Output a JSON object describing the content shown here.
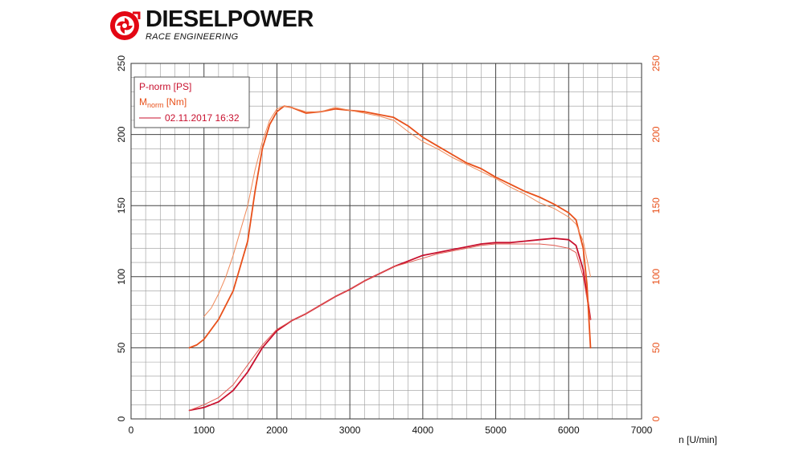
{
  "header": {
    "brand": "DIESELPOWER",
    "tagline": "RACE ENGINEERING",
    "brand_color": "#111111",
    "mark_color": "#e30613"
  },
  "chart_data": {
    "type": "line",
    "xlabel": "n [U/min]",
    "xlim": [
      0,
      7000
    ],
    "x_ticks": [
      0,
      1000,
      2000,
      3000,
      4000,
      5000,
      6000,
      7000
    ],
    "ylim_left": [
      0,
      250
    ],
    "ylim_right": [
      0,
      250
    ],
    "y_ticks_left": [
      0,
      50,
      100,
      150,
      200,
      250
    ],
    "y_ticks_right": [
      0,
      50,
      100,
      150,
      200,
      250
    ],
    "grid": true,
    "legend_position": "top-left",
    "legend": {
      "power_label": "P-norm [PS]",
      "torque_label_main": "M",
      "torque_label_sub": "norm",
      "torque_label_unit": " [Nm]",
      "run_label": "02.11.2017 16:32"
    },
    "colors": {
      "power": "#c8102e",
      "torque": "#e8501a",
      "power_thin": "#e05a50",
      "torque_thin": "#f08a5a",
      "axis_left": "#111111",
      "axis_right": "#e8501a"
    },
    "series": [
      {
        "name": "P-norm [PS]",
        "axis": "left",
        "x": [
          800,
          1000,
          1200,
          1400,
          1600,
          1800,
          2000,
          2200,
          2400,
          2600,
          2800,
          3000,
          3200,
          3400,
          3600,
          3800,
          4000,
          4200,
          4400,
          4600,
          4800,
          5000,
          5200,
          5400,
          5600,
          5800,
          6000,
          6100,
          6200,
          6300
        ],
        "y": [
          6,
          8,
          12,
          20,
          33,
          50,
          62,
          69,
          74,
          80,
          86,
          91,
          97,
          102,
          107,
          111,
          115,
          117,
          119,
          121,
          123,
          124,
          124,
          125,
          126,
          127,
          126,
          122,
          105,
          70
        ]
      },
      {
        "name": "P-norm [PS] (2)",
        "axis": "left",
        "x": [
          800,
          1000,
          1200,
          1400,
          1600,
          1800,
          2000,
          2200,
          2400,
          2600,
          2800,
          3000,
          3200,
          3400,
          3600,
          3800,
          4000,
          4200,
          4400,
          4600,
          4800,
          5000,
          5200,
          5400,
          5600,
          5800,
          6000,
          6100,
          6200,
          6300
        ],
        "y": [
          6,
          10,
          15,
          24,
          38,
          52,
          63,
          69,
          74,
          80,
          86,
          91,
          97,
          102,
          107,
          110,
          113,
          116,
          118,
          120,
          122,
          123,
          123,
          123,
          123,
          122,
          120,
          117,
          100,
          70
        ]
      },
      {
        "name": "M-norm [Nm]",
        "axis": "right",
        "x": [
          800,
          900,
          1000,
          1200,
          1400,
          1600,
          1700,
          1800,
          1900,
          2000,
          2100,
          2200,
          2400,
          2600,
          2800,
          3000,
          3200,
          3400,
          3600,
          3800,
          4000,
          4200,
          4400,
          4600,
          4800,
          5000,
          5200,
          5400,
          5600,
          5800,
          6000,
          6100,
          6200,
          6250,
          6300
        ],
        "y": [
          50,
          52,
          56,
          70,
          90,
          125,
          160,
          190,
          207,
          216,
          220,
          219,
          215,
          216,
          218,
          217,
          216,
          214,
          212,
          206,
          198,
          192,
          186,
          180,
          176,
          170,
          165,
          160,
          156,
          151,
          145,
          140,
          120,
          95,
          50
        ]
      },
      {
        "name": "M-norm [Nm] (2)",
        "axis": "right",
        "x": [
          1000,
          1100,
          1200,
          1300,
          1400,
          1600,
          1700,
          1800,
          1900,
          2000,
          2100,
          2200,
          2400,
          2600,
          2800,
          3000,
          3200,
          3400,
          3600,
          3800,
          4000,
          4200,
          4400,
          4600,
          4800,
          5000,
          5200,
          5400,
          5600,
          5800,
          6000,
          6100,
          6200,
          6300
        ],
        "y": [
          72,
          78,
          88,
          100,
          115,
          150,
          175,
          195,
          210,
          218,
          220,
          219,
          216,
          216,
          219,
          217,
          215,
          213,
          210,
          202,
          195,
          190,
          184,
          179,
          174,
          169,
          163,
          158,
          152,
          148,
          142,
          137,
          125,
          100
        ]
      }
    ]
  }
}
